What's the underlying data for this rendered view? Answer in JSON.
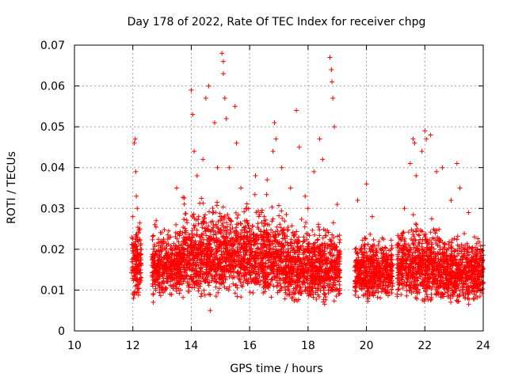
{
  "chart_data": {
    "type": "scatter",
    "title": "Day 178 of 2022, Rate Of TEC Index for receiver chpg",
    "xlabel": "GPS time / hours",
    "ylabel": "ROTI / TECUs",
    "xlim": [
      10,
      24
    ],
    "ylim": [
      0,
      0.07
    ],
    "xticks": [
      10,
      12,
      14,
      16,
      18,
      20,
      22,
      24
    ],
    "xtick_labels": [
      "10",
      "12",
      "14",
      "16",
      "18",
      "20",
      "22",
      "24"
    ],
    "yticks": [
      0,
      0.01,
      0.02,
      0.03,
      0.04,
      0.05,
      0.06,
      0.07
    ],
    "ytick_labels": [
      "0",
      "0.01",
      "0.02",
      "0.03",
      "0.04",
      "0.05",
      "0.06",
      "0.07"
    ],
    "grid": true,
    "marker": "+",
    "color": "#ff0000",
    "series": [
      {
        "name": "ROTI",
        "points": [
          [
            12.0,
            0.028
          ],
          [
            12.02,
            0.008
          ],
          [
            12.05,
            0.046
          ],
          [
            12.08,
            0.047
          ],
          [
            12.1,
            0.039
          ],
          [
            12.12,
            0.033
          ],
          [
            12.15,
            0.03
          ],
          [
            12.2,
            0.024
          ],
          [
            12.25,
            0.012
          ],
          [
            12.7,
            0.007
          ],
          [
            12.8,
            0.027
          ],
          [
            12.9,
            0.015
          ],
          [
            13.0,
            0.022
          ],
          [
            13.2,
            0.018
          ],
          [
            13.5,
            0.035
          ],
          [
            13.7,
            0.024
          ],
          [
            14.0,
            0.059
          ],
          [
            14.05,
            0.053
          ],
          [
            14.1,
            0.044
          ],
          [
            14.2,
            0.038
          ],
          [
            14.4,
            0.042
          ],
          [
            14.5,
            0.057
          ],
          [
            14.6,
            0.06
          ],
          [
            14.65,
            0.005
          ],
          [
            14.8,
            0.051
          ],
          [
            14.9,
            0.04
          ],
          [
            15.05,
            0.068
          ],
          [
            15.1,
            0.066
          ],
          [
            15.1,
            0.063
          ],
          [
            15.15,
            0.057
          ],
          [
            15.2,
            0.052
          ],
          [
            15.3,
            0.04
          ],
          [
            15.5,
            0.055
          ],
          [
            15.55,
            0.046
          ],
          [
            15.7,
            0.035
          ],
          [
            15.9,
            0.03
          ],
          [
            16.2,
            0.038
          ],
          [
            16.5,
            0.028
          ],
          [
            16.6,
            0.037
          ],
          [
            16.8,
            0.044
          ],
          [
            16.85,
            0.051
          ],
          [
            16.9,
            0.047
          ],
          [
            17.1,
            0.04
          ],
          [
            17.4,
            0.035
          ],
          [
            17.6,
            0.054
          ],
          [
            17.7,
            0.045
          ],
          [
            17.9,
            0.033
          ],
          [
            18.0,
            0.03
          ],
          [
            18.2,
            0.039
          ],
          [
            18.4,
            0.047
          ],
          [
            18.5,
            0.042
          ],
          [
            18.75,
            0.067
          ],
          [
            18.8,
            0.064
          ],
          [
            18.82,
            0.061
          ],
          [
            18.85,
            0.057
          ],
          [
            18.9,
            0.05
          ],
          [
            19.0,
            0.031
          ],
          [
            19.7,
            0.032
          ],
          [
            20.0,
            0.036
          ],
          [
            20.2,
            0.028
          ],
          [
            20.4,
            0.021
          ],
          [
            20.6,
            0.019
          ],
          [
            21.3,
            0.03
          ],
          [
            21.5,
            0.041
          ],
          [
            21.6,
            0.047
          ],
          [
            21.65,
            0.046
          ],
          [
            21.7,
            0.038
          ],
          [
            21.9,
            0.044
          ],
          [
            22.0,
            0.049
          ],
          [
            22.05,
            0.047
          ],
          [
            22.2,
            0.048
          ],
          [
            22.4,
            0.039
          ],
          [
            22.6,
            0.04
          ],
          [
            22.9,
            0.032
          ],
          [
            23.1,
            0.041
          ],
          [
            23.2,
            0.035
          ],
          [
            23.5,
            0.029
          ],
          [
            23.7,
            0.023
          ],
          [
            23.9,
            0.018
          ]
        ],
        "dense_bands": [
          {
            "x": [
              11.95,
              12.3
            ],
            "y": [
              0.007,
              0.03
            ]
          },
          {
            "x": [
              12.65,
              13.0
            ],
            "y": [
              0.007,
              0.027
            ]
          },
          {
            "x": [
              13.0,
              13.7
            ],
            "y": [
              0.008,
              0.028
            ]
          },
          {
            "x": [
              13.7,
              15.0
            ],
            "y": [
              0.007,
              0.035
            ]
          },
          {
            "x": [
              15.0,
              16.0
            ],
            "y": [
              0.008,
              0.033
            ]
          },
          {
            "x": [
              16.0,
              17.2
            ],
            "y": [
              0.007,
              0.034
            ]
          },
          {
            "x": [
              17.2,
              18.2
            ],
            "y": [
              0.006,
              0.03
            ]
          },
          {
            "x": [
              18.2,
              19.1
            ],
            "y": [
              0.006,
              0.028
            ]
          },
          {
            "x": [
              19.6,
              20.9
            ],
            "y": [
              0.007,
              0.025
            ]
          },
          {
            "x": [
              21.05,
              22.5
            ],
            "y": [
              0.006,
              0.03
            ]
          },
          {
            "x": [
              22.5,
              24.0
            ],
            "y": [
              0.006,
              0.026
            ]
          }
        ]
      }
    ]
  }
}
